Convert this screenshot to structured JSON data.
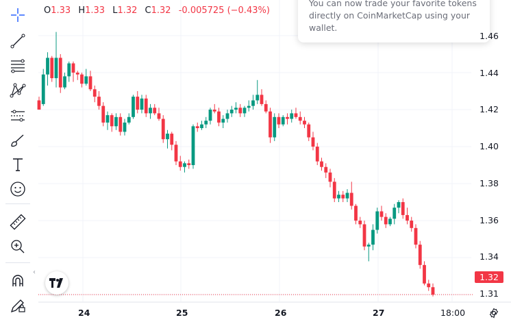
{
  "ohlc": {
    "o_key": "O",
    "o_val": "1.33",
    "h_key": "H",
    "h_val": "1.33",
    "l_key": "L",
    "l_val": "1.32",
    "c_key": "C",
    "c_val": "1.32",
    "change": "-0.005725 (−0.43%)"
  },
  "toast": {
    "text": "You can now trade your favorite tokens directly on CoinMarketCap using your wallet."
  },
  "price_axis": {
    "labels": [
      "1.46",
      "1.44",
      "1.42",
      "1.40",
      "1.38",
      "1.36",
      "1.34",
      "1.31"
    ],
    "current_price": "1.32"
  },
  "time_axis": {
    "labels": [
      "24",
      "25",
      "26",
      "27",
      "18:00"
    ]
  },
  "toolbar": {
    "icons": [
      "crosshair-icon",
      "trend-line-icon",
      "fib-retracement-icon",
      "pattern-icon",
      "forecast-icon",
      "brush-icon",
      "text-icon",
      "emoji-icon",
      "ruler-icon",
      "zoom-in-icon",
      "magnet-icon",
      "draw-lock-icon"
    ]
  },
  "colors": {
    "up": "#089981",
    "down": "#f23645",
    "accent": "#2962ff",
    "grid": "#f0f3fa",
    "text": "#131722"
  },
  "chart_data": {
    "type": "candlestick",
    "ylim": [
      1.31,
      1.465
    ],
    "x_ticks": [
      "24",
      "25",
      "26",
      "27",
      "18:00"
    ],
    "last_price": 1.32,
    "candles": [
      [
        1.425,
        1.427,
        1.42,
        1.42
      ],
      [
        1.423,
        1.442,
        1.422,
        1.439
      ],
      [
        1.439,
        1.451,
        1.433,
        1.448
      ],
      [
        1.448,
        1.449,
        1.435,
        1.437
      ],
      [
        1.437,
        1.462,
        1.432,
        1.448
      ],
      [
        1.448,
        1.45,
        1.429,
        1.432
      ],
      [
        1.432,
        1.44,
        1.431,
        1.438
      ],
      [
        1.438,
        1.446,
        1.435,
        1.445
      ],
      [
        1.445,
        1.446,
        1.435,
        1.44
      ],
      [
        1.44,
        1.441,
        1.436,
        1.439
      ],
      [
        1.439,
        1.44,
        1.432,
        1.434
      ],
      [
        1.434,
        1.442,
        1.433,
        1.438
      ],
      [
        1.438,
        1.441,
        1.43,
        1.431
      ],
      [
        1.431,
        1.433,
        1.424,
        1.427
      ],
      [
        1.427,
        1.43,
        1.42,
        1.422
      ],
      [
        1.422,
        1.424,
        1.411,
        1.413
      ],
      [
        1.413,
        1.419,
        1.409,
        1.417
      ],
      [
        1.417,
        1.418,
        1.408,
        1.411
      ],
      [
        1.411,
        1.418,
        1.409,
        1.416
      ],
      [
        1.416,
        1.418,
        1.406,
        1.408
      ],
      [
        1.408,
        1.415,
        1.406,
        1.413
      ],
      [
        1.413,
        1.418,
        1.412,
        1.416
      ],
      [
        1.416,
        1.428,
        1.415,
        1.427
      ],
      [
        1.427,
        1.43,
        1.418,
        1.42
      ],
      [
        1.42,
        1.428,
        1.418,
        1.426
      ],
      [
        1.426,
        1.428,
        1.416,
        1.418
      ],
      [
        1.418,
        1.423,
        1.415,
        1.421
      ],
      [
        1.421,
        1.423,
        1.417,
        1.418
      ],
      [
        1.418,
        1.421,
        1.414,
        1.415
      ],
      [
        1.415,
        1.417,
        1.402,
        1.404
      ],
      [
        1.404,
        1.409,
        1.399,
        1.407
      ],
      [
        1.407,
        1.408,
        1.398,
        1.401
      ],
      [
        1.401,
        1.403,
        1.39,
        1.392
      ],
      [
        1.392,
        1.395,
        1.387,
        1.389
      ],
      [
        1.389,
        1.392,
        1.386,
        1.391
      ],
      [
        1.391,
        1.393,
        1.388,
        1.39
      ],
      [
        1.39,
        1.412,
        1.388,
        1.411
      ],
      [
        1.411,
        1.413,
        1.408,
        1.41
      ],
      [
        1.41,
        1.414,
        1.409,
        1.412
      ],
      [
        1.412,
        1.416,
        1.41,
        1.414
      ],
      [
        1.414,
        1.421,
        1.412,
        1.42
      ],
      [
        1.42,
        1.423,
        1.418,
        1.419
      ],
      [
        1.419,
        1.421,
        1.411,
        1.413
      ],
      [
        1.413,
        1.417,
        1.41,
        1.415
      ],
      [
        1.415,
        1.42,
        1.413,
        1.418
      ],
      [
        1.418,
        1.422,
        1.416,
        1.42
      ],
      [
        1.42,
        1.424,
        1.418,
        1.421
      ],
      [
        1.421,
        1.423,
        1.416,
        1.418
      ],
      [
        1.418,
        1.422,
        1.416,
        1.421
      ],
      [
        1.421,
        1.425,
        1.419,
        1.422
      ],
      [
        1.422,
        1.428,
        1.42,
        1.425
      ],
      [
        1.425,
        1.436,
        1.423,
        1.428
      ],
      [
        1.428,
        1.431,
        1.422,
        1.423
      ],
      [
        1.423,
        1.425,
        1.418,
        1.419
      ],
      [
        1.419,
        1.421,
        1.402,
        1.405
      ],
      [
        1.405,
        1.418,
        1.403,
        1.416
      ],
      [
        1.416,
        1.418,
        1.41,
        1.412
      ],
      [
        1.412,
        1.417,
        1.411,
        1.416
      ],
      [
        1.416,
        1.418,
        1.412,
        1.415
      ],
      [
        1.415,
        1.42,
        1.413,
        1.418
      ],
      [
        1.418,
        1.421,
        1.415,
        1.416
      ],
      [
        1.416,
        1.419,
        1.412,
        1.414
      ],
      [
        1.414,
        1.416,
        1.41,
        1.412
      ],
      [
        1.412,
        1.413,
        1.403,
        1.405
      ],
      [
        1.405,
        1.408,
        1.398,
        1.4
      ],
      [
        1.4,
        1.402,
        1.39,
        1.392
      ],
      [
        1.392,
        1.394,
        1.387,
        1.389
      ],
      [
        1.389,
        1.391,
        1.383,
        1.386
      ],
      [
        1.386,
        1.388,
        1.378,
        1.381
      ],
      [
        1.381,
        1.383,
        1.37,
        1.372
      ],
      [
        1.372,
        1.376,
        1.37,
        1.374
      ],
      [
        1.374,
        1.376,
        1.37,
        1.372
      ],
      [
        1.372,
        1.377,
        1.37,
        1.375
      ],
      [
        1.375,
        1.381,
        1.366,
        1.368
      ],
      [
        1.368,
        1.369,
        1.358,
        1.36
      ],
      [
        1.36,
        1.362,
        1.356,
        1.358
      ],
      [
        1.358,
        1.36,
        1.344,
        1.346
      ],
      [
        1.346,
        1.348,
        1.338,
        1.347
      ],
      [
        1.347,
        1.358,
        1.344,
        1.355
      ],
      [
        1.355,
        1.367,
        1.353,
        1.365
      ],
      [
        1.365,
        1.368,
        1.36,
        1.362
      ],
      [
        1.362,
        1.364,
        1.356,
        1.358
      ],
      [
        1.358,
        1.362,
        1.357,
        1.361
      ],
      [
        1.361,
        1.369,
        1.358,
        1.367
      ],
      [
        1.367,
        1.371,
        1.364,
        1.37
      ],
      [
        1.37,
        1.372,
        1.361,
        1.363
      ],
      [
        1.363,
        1.367,
        1.358,
        1.36
      ],
      [
        1.36,
        1.362,
        1.354,
        1.356
      ],
      [
        1.356,
        1.358,
        1.345,
        1.347
      ],
      [
        1.347,
        1.349,
        1.334,
        1.336
      ],
      [
        1.336,
        1.338,
        1.325,
        1.326
      ],
      [
        1.326,
        1.328,
        1.322,
        1.324
      ],
      [
        1.324,
        1.326,
        1.319,
        1.32
      ]
    ]
  }
}
